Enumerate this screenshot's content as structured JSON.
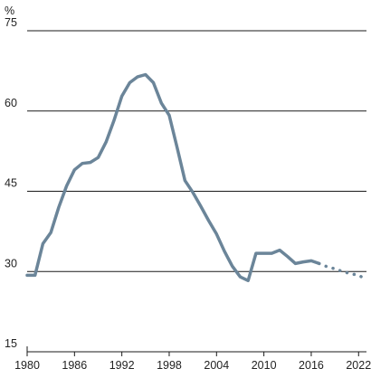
{
  "chart_data": {
    "type": "line",
    "title": "",
    "xlabel": "",
    "ylabel": "%",
    "xlim": [
      1980,
      2023
    ],
    "ylim": [
      15,
      75
    ],
    "y_ticks": [
      15,
      30,
      45,
      60,
      75
    ],
    "x_ticks": [
      1980,
      1986,
      1992,
      1998,
      2004,
      2010,
      2016,
      2022
    ],
    "gridlines": "horizontal",
    "line_color": "#6b8599",
    "series": [
      {
        "style": "solid",
        "x": [
          1980,
          1981,
          1982,
          1983,
          1984,
          1985,
          1986,
          1987,
          1988,
          1989,
          1990,
          1991,
          1992,
          1993,
          1994,
          1995,
          1996,
          1997,
          1998,
          1999,
          2000,
          2001,
          2002,
          2003,
          2004,
          2005,
          2006,
          2007,
          2008,
          2009,
          2010,
          2011,
          2012,
          2013,
          2014,
          2015,
          2016,
          2017
        ],
        "y": [
          29.3,
          29.3,
          35.2,
          37.3,
          42.0,
          46.0,
          49.0,
          50.2,
          50.4,
          51.3,
          54.2,
          58.2,
          62.8,
          65.3,
          66.4,
          66.8,
          65.3,
          61.5,
          59.2,
          53.2,
          47.0,
          44.8,
          42.2,
          39.5,
          37.0,
          33.8,
          31.0,
          29.0,
          28.3,
          33.4,
          33.4,
          33.4,
          34.0,
          32.8,
          31.5,
          31.8,
          32.0,
          31.5
        ]
      },
      {
        "style": "dotted",
        "x": [
          2017,
          2018,
          2019,
          2020,
          2021,
          2022,
          2023
        ],
        "y": [
          31.5,
          30.9,
          30.5,
          30.0,
          29.6,
          29.3,
          28.5
        ]
      }
    ]
  }
}
